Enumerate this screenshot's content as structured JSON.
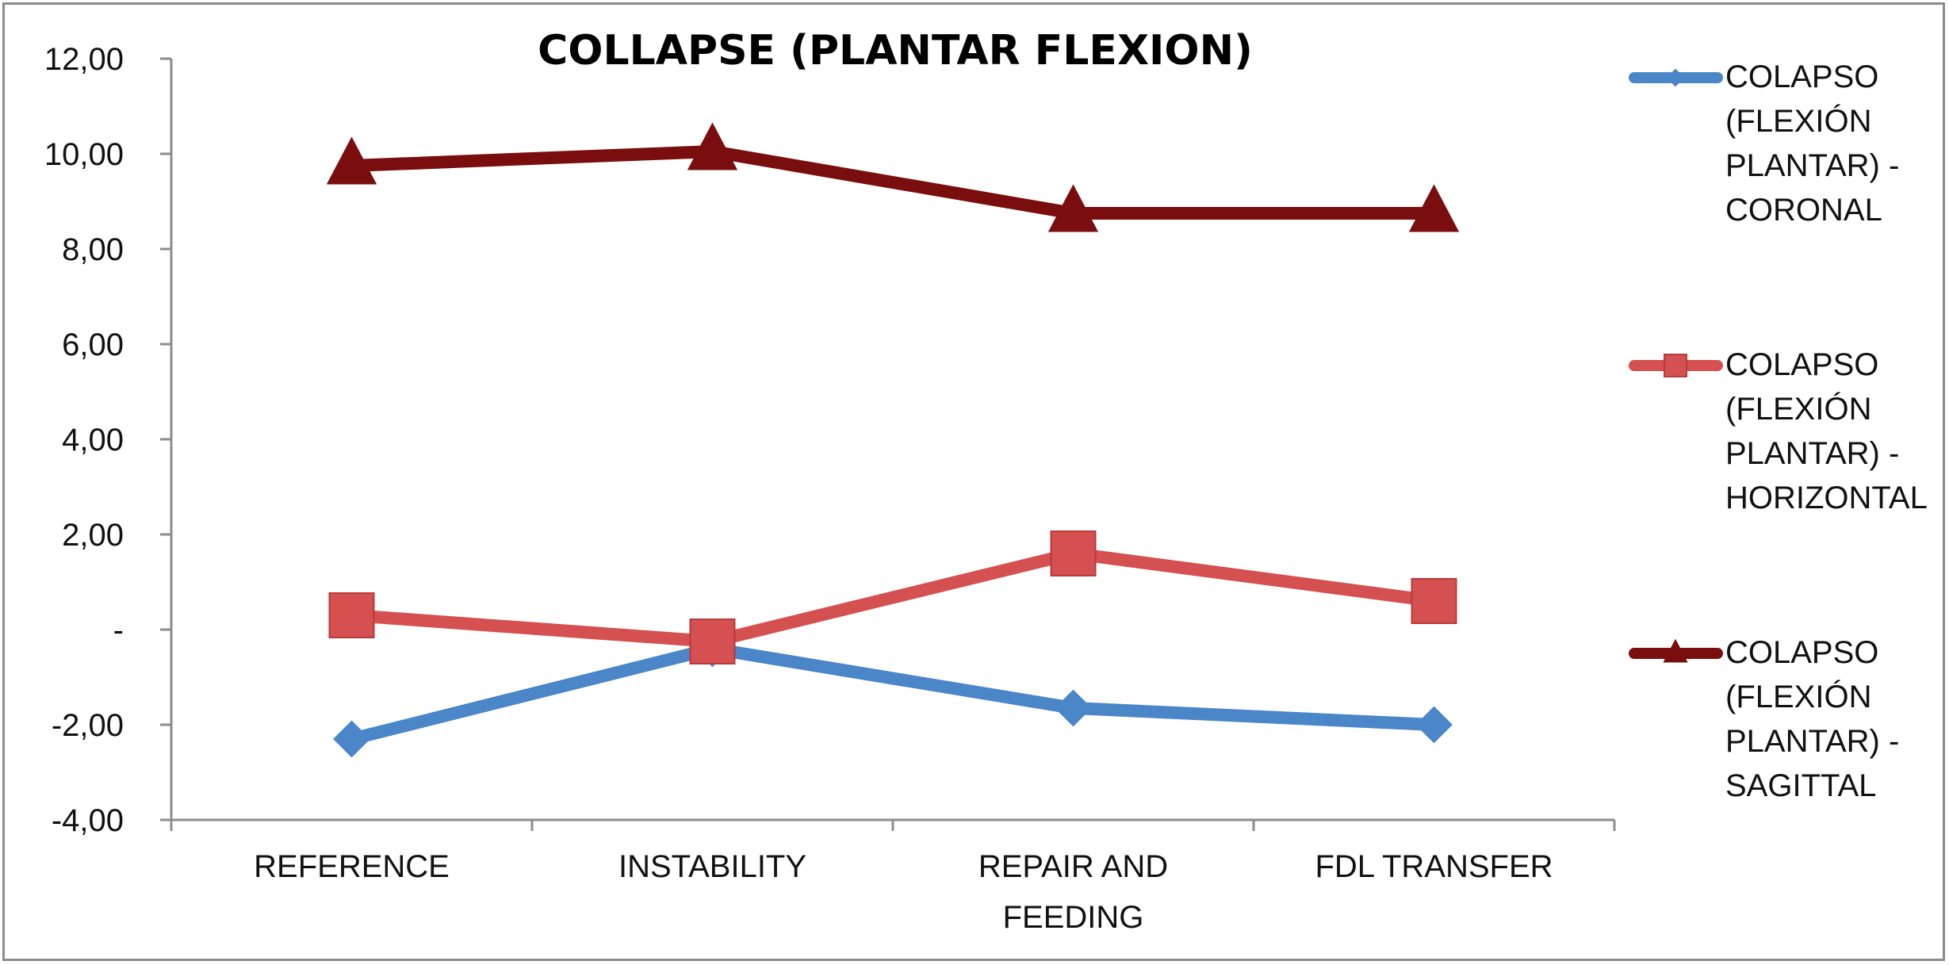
{
  "chart_data": {
    "type": "line",
    "title": "COLLAPSE (PLANTAR FLEXION)",
    "categories": [
      [
        "REFERENCE"
      ],
      [
        "INSTABILITY"
      ],
      [
        "REPAIR AND",
        "FEEDING"
      ],
      [
        "FDL TRANSFER"
      ]
    ],
    "y_ticks": [
      "12,00",
      "10,00",
      "8,00",
      "6,00",
      "4,00",
      "2,00",
      "-",
      "-2,00",
      "-4,00"
    ],
    "ylim": [
      -4,
      12
    ],
    "grid": false,
    "legend_position": "right",
    "series": [
      {
        "name": [
          "COLAPSO",
          "(FLEXIÓN",
          "PLANTAR) -",
          "CORONAL"
        ],
        "values": [
          -2.3,
          -0.4,
          -1.65,
          -2.0
        ],
        "color": "#4a86c8",
        "marker": "diamond"
      },
      {
        "name": [
          "COLAPSO",
          "(FLEXIÓN",
          "PLANTAR) -",
          "HORIZONTAL"
        ],
        "values": [
          0.3,
          -0.25,
          1.6,
          0.6
        ],
        "color": "#d55050",
        "marker": "square"
      },
      {
        "name": [
          "COLAPSO",
          "(FLEXIÓN",
          "PLANTAR) -",
          "SAGITTAL"
        ],
        "values": [
          9.75,
          10.05,
          8.75,
          8.75
        ],
        "color": "#7a0e0e",
        "marker": "triangle"
      }
    ]
  }
}
